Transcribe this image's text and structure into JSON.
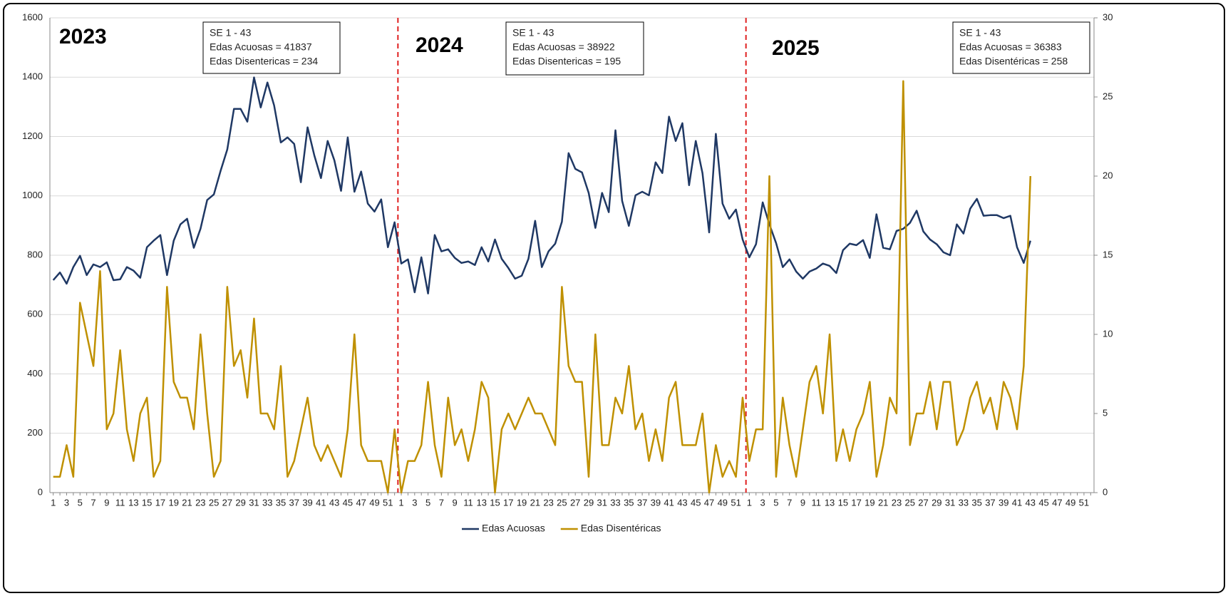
{
  "chart_data": {
    "type": "line",
    "categories": [
      "1",
      null,
      "3",
      null,
      "5",
      null,
      "7",
      null,
      "9",
      null,
      "11",
      null,
      "13",
      null,
      "15",
      null,
      "17",
      null,
      "19",
      null,
      "21",
      null,
      "23",
      null,
      "25",
      null,
      "27",
      null,
      "29",
      null,
      "31",
      null,
      "33",
      null,
      "35",
      null,
      "37",
      null,
      "39",
      null,
      "41",
      null,
      "43",
      null,
      "45",
      null,
      "47",
      null,
      "49",
      null,
      "51",
      null,
      "1",
      null,
      "3",
      null,
      "5",
      null,
      "7",
      null,
      "9",
      null,
      "11",
      null,
      "13",
      null,
      "15",
      null,
      "17",
      null,
      "19",
      null,
      "21",
      null,
      "23",
      null,
      "25",
      null,
      "27",
      null,
      "29",
      null,
      "31",
      null,
      "33",
      null,
      "35",
      null,
      "37",
      null,
      "39",
      null,
      "41",
      null,
      "43",
      null,
      "45",
      null,
      "47",
      null,
      "49",
      null,
      "51",
      null,
      "1",
      null,
      "3",
      null,
      "5",
      null,
      "7",
      null,
      "9",
      null,
      "11",
      null,
      "13",
      null,
      "15",
      null,
      "17",
      null,
      "19",
      null,
      "21",
      null,
      "23",
      null,
      "25",
      null,
      "27",
      null,
      "29",
      null,
      "31",
      null,
      "33",
      null,
      "35",
      null,
      "37",
      null,
      "39",
      null,
      "41",
      null,
      "43",
      null,
      "45",
      null,
      "47",
      null,
      "49",
      null,
      "51",
      null
    ],
    "series": [
      {
        "name": "Edas Acuosas",
        "color": "#1f3864",
        "values": [
          716,
          742,
          704,
          760,
          798,
          733,
          769,
          760,
          776,
          716,
          719,
          760,
          748,
          724,
          827,
          849,
          868,
          733,
          849,
          904,
          923,
          825,
          889,
          986,
          1005,
          1084,
          1156,
          1293,
          1293,
          1250,
          1399,
          1298,
          1382,
          1305,
          1180,
          1197,
          1175,
          1046,
          1231,
          1137,
          1060,
          1185,
          1120,
          1017,
          1197,
          1014,
          1082,
          974,
          947,
          988,
          827,
          911,
          772,
          786,
          675,
          793,
          671,
          868,
          813,
          820,
          791,
          774,
          779,
          767,
          827,
          779,
          853,
          788,
          757,
          721,
          731,
          788,
          916,
          760,
          813,
          839,
          913,
          1144,
          1091,
          1079,
          1010,
          892,
          1010,
          945,
          1221,
          983,
          899,
          1002,
          1014,
          1002,
          1113,
          1077,
          1267,
          1185,
          1245,
          1036,
          1185,
          1077,
          877,
          1209,
          974,
          923,
          954,
          853,
          793,
          837,
          978,
          904,
          841,
          760,
          786,
          745,
          721,
          745,
          755,
          772,
          764,
          740,
          817,
          839,
          834,
          851,
          791,
          938,
          825,
          820,
          882,
          889,
          909,
          950,
          880,
          853,
          837,
          810,
          800,
          904,
          873,
          957,
          990,
          933,
          935,
          935,
          925,
          933,
          827,
          774,
          849,
          null,
          null,
          null,
          null,
          null,
          null,
          null,
          null,
          null
        ]
      },
      {
        "name": "Edas Disentéricas",
        "color": "#bf9000",
        "axis": "y2",
        "values": [
          1,
          1,
          3,
          1,
          12,
          10,
          8,
          14,
          4,
          5,
          9,
          4,
          2,
          5,
          6,
          1,
          2,
          13,
          7,
          6,
          6,
          4,
          10,
          5,
          1,
          2,
          13,
          8,
          9,
          6,
          11,
          5,
          5,
          4,
          8,
          1,
          2,
          4,
          6,
          3,
          2,
          3,
          2,
          1,
          4,
          10,
          3,
          2,
          2,
          2,
          0,
          4,
          0,
          2,
          2,
          3,
          7,
          3,
          1,
          6,
          3,
          4,
          2,
          4,
          7,
          6,
          0,
          4,
          5,
          4,
          5,
          6,
          5,
          5,
          4,
          3,
          13,
          8,
          7,
          7,
          1,
          10,
          3,
          3,
          6,
          5,
          8,
          4,
          5,
          2,
          4,
          2,
          6,
          7,
          3,
          3,
          3,
          5,
          0,
          3,
          1,
          2,
          1,
          6,
          2,
          4,
          4,
          20,
          1,
          6,
          3,
          1,
          4,
          7,
          8,
          5,
          10,
          2,
          4,
          2,
          4,
          5,
          7,
          1,
          3,
          6,
          5,
          26,
          3,
          5,
          5,
          7,
          4,
          7,
          7,
          3,
          4,
          6,
          7,
          5,
          6,
          4,
          7,
          6,
          4,
          8,
          20,
          null,
          null,
          null,
          null,
          null,
          null,
          null,
          null,
          null
        ]
      }
    ],
    "ylim": [
      0,
      1600
    ],
    "yticks": [
      0,
      200,
      400,
      600,
      800,
      1000,
      1200,
      1400,
      1600
    ],
    "y2lim": [
      0,
      30
    ],
    "y2ticks": [
      0,
      5,
      10,
      15,
      20,
      25,
      30
    ],
    "grid": true,
    "legend": "bottom",
    "year_labels": [
      "2023",
      "2024",
      "2025"
    ],
    "summary_boxes": [
      [
        "SE 1 - 43",
        "Edas Acuosas = 41837",
        "Edas Disentericas = 234"
      ],
      [
        "SE 1 - 43",
        "Edas Acuosas = 38922",
        "Edas Disentericas = 195"
      ],
      [
        "SE 1 - 43",
        "Edas Acuosas = 36383",
        "Edas Disentéricas = 258"
      ]
    ]
  }
}
